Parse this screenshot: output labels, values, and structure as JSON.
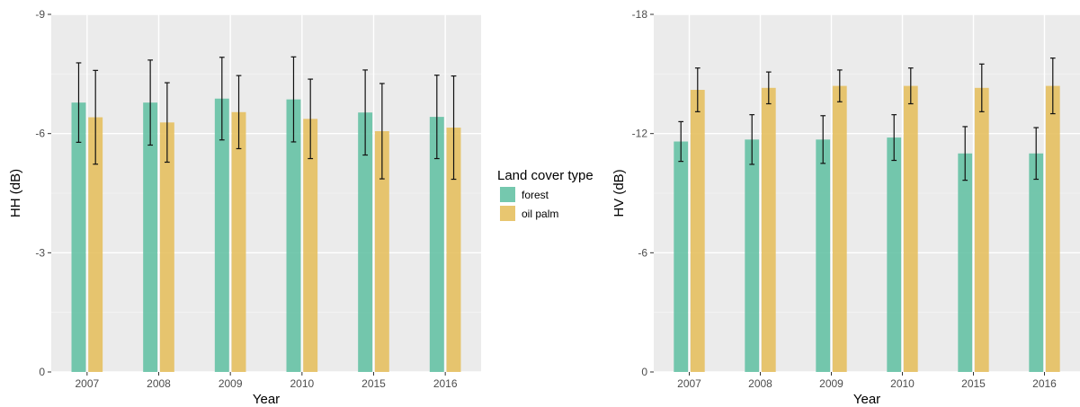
{
  "chart_data": [
    {
      "type": "bar",
      "panel": "left",
      "xlabel": "Year",
      "ylabel": "HH (dB)",
      "categories": [
        "2007",
        "2008",
        "2009",
        "2010",
        "2015",
        "2016"
      ],
      "ylim": [
        0,
        -9
      ],
      "yticks": [
        0,
        -3,
        -6,
        -9
      ],
      "ytick_labels": [
        "0",
        "-3",
        "-6",
        "-9"
      ],
      "grid": true,
      "series": [
        {
          "name": "forest",
          "color": "#66C2A5",
          "values": [
            -6.78,
            -6.78,
            -6.88,
            -6.86,
            -6.53,
            -6.42
          ],
          "error": [
            1.0,
            1.07,
            1.04,
            1.07,
            1.07,
            1.05
          ]
        },
        {
          "name": "oil palm",
          "color": "#E5C060",
          "values": [
            -6.41,
            -6.28,
            -6.54,
            -6.37,
            -6.06,
            -6.15
          ],
          "error": [
            1.18,
            1.0,
            0.92,
            1.0,
            1.2,
            1.3
          ]
        }
      ]
    },
    {
      "type": "bar",
      "panel": "right",
      "xlabel": "Year",
      "ylabel": "HV (dB)",
      "categories": [
        "2007",
        "2008",
        "2009",
        "2010",
        "2015",
        "2016"
      ],
      "ylim": [
        0,
        -18
      ],
      "yticks": [
        0,
        -6,
        -12,
        -18
      ],
      "ytick_labels": [
        "0",
        "-6",
        "-12",
        "-18"
      ],
      "grid": true,
      "series": [
        {
          "name": "forest",
          "color": "#66C2A5",
          "values": [
            -11.6,
            -11.7,
            -11.7,
            -11.8,
            -11.0,
            -11.0
          ],
          "error": [
            1.0,
            1.25,
            1.2,
            1.15,
            1.35,
            1.3
          ]
        },
        {
          "name": "oil palm",
          "color": "#E5C060",
          "values": [
            -14.2,
            -14.3,
            -14.4,
            -14.4,
            -14.3,
            -14.4
          ],
          "error": [
            1.1,
            0.8,
            0.8,
            0.9,
            1.2,
            1.4
          ]
        }
      ]
    }
  ],
  "legend": {
    "title": "Land cover type",
    "placement": "center",
    "items": [
      {
        "label": "forest",
        "color": "#66C2A5"
      },
      {
        "label": "oil palm",
        "color": "#E5C060"
      }
    ]
  }
}
